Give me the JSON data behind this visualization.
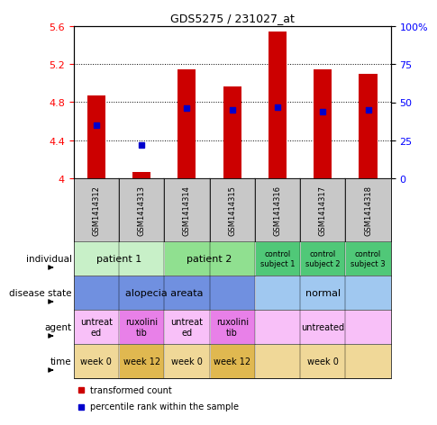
{
  "title": "GDS5275 / 231027_at",
  "samples": [
    "GSM1414312",
    "GSM1414313",
    "GSM1414314",
    "GSM1414315",
    "GSM1414316",
    "GSM1414317",
    "GSM1414318"
  ],
  "transformed_count": [
    4.87,
    4.07,
    5.15,
    4.97,
    5.54,
    5.15,
    5.1
  ],
  "percentile_rank": [
    35,
    22,
    46,
    45,
    47,
    44,
    45
  ],
  "ylim_left": [
    4.0,
    5.6
  ],
  "ylim_right": [
    0,
    100
  ],
  "yticks_left": [
    4.0,
    4.4,
    4.8,
    5.2,
    5.6
  ],
  "yticks_right": [
    0,
    25,
    50,
    75,
    100
  ],
  "ytick_labels_right": [
    "0",
    "25",
    "50",
    "75",
    "100%"
  ],
  "ytick_labels_left": [
    "4",
    "4.4",
    "4.8",
    "5.2",
    "5.6"
  ],
  "bar_color": "#cc0000",
  "dot_color": "#0000cc",
  "bar_bottom": 4.0,
  "bar_width": 0.4,
  "annotation_rows": [
    {
      "label": "individual",
      "cells": [
        {
          "text": "patient 1",
          "span": [
            0,
            1
          ],
          "color": "#c8f0c8",
          "fontsize": 8
        },
        {
          "text": "patient 2",
          "span": [
            2,
            3
          ],
          "color": "#90e090",
          "fontsize": 8
        },
        {
          "text": "control\nsubject 1",
          "span": [
            4,
            4
          ],
          "color": "#50c878",
          "fontsize": 6
        },
        {
          "text": "control\nsubject 2",
          "span": [
            5,
            5
          ],
          "color": "#50c878",
          "fontsize": 6
        },
        {
          "text": "control\nsubject 3",
          "span": [
            6,
            6
          ],
          "color": "#50c878",
          "fontsize": 6
        }
      ]
    },
    {
      "label": "disease state",
      "cells": [
        {
          "text": "alopecia areata",
          "span": [
            0,
            3
          ],
          "color": "#7090e0",
          "fontsize": 8
        },
        {
          "text": "normal",
          "span": [
            4,
            6
          ],
          "color": "#a0c8f0",
          "fontsize": 8
        }
      ]
    },
    {
      "label": "agent",
      "cells": [
        {
          "text": "untreat\ned",
          "span": [
            0,
            0
          ],
          "color": "#f8c0f8",
          "fontsize": 7
        },
        {
          "text": "ruxolini\ntib",
          "span": [
            1,
            1
          ],
          "color": "#e880e8",
          "fontsize": 7
        },
        {
          "text": "untreat\ned",
          "span": [
            2,
            2
          ],
          "color": "#f8c0f8",
          "fontsize": 7
        },
        {
          "text": "ruxolini\ntib",
          "span": [
            3,
            3
          ],
          "color": "#e880e8",
          "fontsize": 7
        },
        {
          "text": "untreated",
          "span": [
            4,
            6
          ],
          "color": "#f8c0f8",
          "fontsize": 7
        }
      ]
    },
    {
      "label": "time",
      "cells": [
        {
          "text": "week 0",
          "span": [
            0,
            0
          ],
          "color": "#f0d898",
          "fontsize": 7
        },
        {
          "text": "week 12",
          "span": [
            1,
            1
          ],
          "color": "#e0b850",
          "fontsize": 7
        },
        {
          "text": "week 0",
          "span": [
            2,
            2
          ],
          "color": "#f0d898",
          "fontsize": 7
        },
        {
          "text": "week 12",
          "span": [
            3,
            3
          ],
          "color": "#e0b850",
          "fontsize": 7
        },
        {
          "text": "week 0",
          "span": [
            4,
            6
          ],
          "color": "#f0d898",
          "fontsize": 7
        }
      ]
    }
  ],
  "legend": [
    {
      "color": "#cc0000",
      "label": "transformed count"
    },
    {
      "color": "#0000cc",
      "label": "percentile rank within the sample"
    }
  ],
  "header_bg": "#c8c8c8"
}
